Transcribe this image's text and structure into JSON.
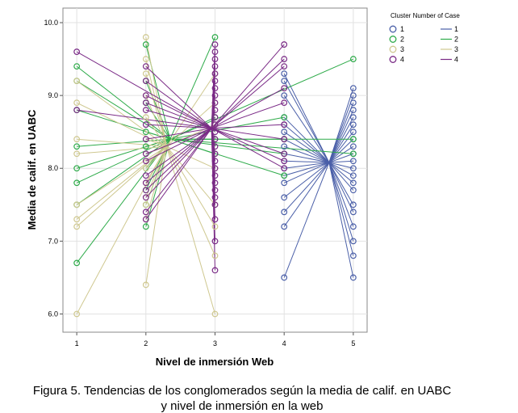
{
  "chart_data": {
    "type": "line",
    "xlabel": "Nivel de inmersión Web",
    "ylabel": "Media de calif. en UABC",
    "xlim": [
      0.8,
      5.2
    ],
    "ylim": [
      5.75,
      10.2
    ],
    "x_ticks": [
      "1",
      "2",
      "3",
      "4",
      "5"
    ],
    "y_ticks": [
      "6.0",
      "7.0",
      "8.0",
      "9.0",
      "10.0"
    ],
    "grid": true,
    "legend_placement": "top-right, outside plot",
    "legend_title": "Cluster Number of Case",
    "series": [
      {
        "name": "1",
        "color": "#4a5fa8",
        "centroid": [
          4.65,
          8.08
        ],
        "points": [
          [
            4,
            9.3
          ],
          [
            4,
            9.2
          ],
          [
            4,
            9.0
          ],
          [
            4,
            8.7
          ],
          [
            4,
            8.6
          ],
          [
            4,
            8.5
          ],
          [
            4,
            8.4
          ],
          [
            4,
            8.3
          ],
          [
            4,
            8.2
          ],
          [
            4,
            8.1
          ],
          [
            4,
            8.0
          ],
          [
            4,
            7.9
          ],
          [
            4,
            7.8
          ],
          [
            4,
            7.6
          ],
          [
            4,
            7.4
          ],
          [
            4,
            7.2
          ],
          [
            4,
            6.5
          ],
          [
            5,
            9.1
          ],
          [
            5,
            9.0
          ],
          [
            5,
            8.9
          ],
          [
            5,
            8.8
          ],
          [
            5,
            8.7
          ],
          [
            5,
            8.6
          ],
          [
            5,
            8.5
          ],
          [
            5,
            8.4
          ],
          [
            5,
            8.3
          ],
          [
            5,
            8.2
          ],
          [
            5,
            8.1
          ],
          [
            5,
            8.0
          ],
          [
            5,
            7.9
          ],
          [
            5,
            7.8
          ],
          [
            5,
            7.7
          ],
          [
            5,
            7.5
          ],
          [
            5,
            7.4
          ],
          [
            5,
            7.2
          ],
          [
            5,
            7.0
          ],
          [
            5,
            6.8
          ],
          [
            5,
            6.5
          ]
        ]
      },
      {
        "name": "2",
        "color": "#2eab4a",
        "centroid": [
          2.35,
          8.4
        ],
        "points": [
          [
            1,
            9.4
          ],
          [
            1,
            9.2
          ],
          [
            1,
            8.8
          ],
          [
            1,
            8.3
          ],
          [
            1,
            8.0
          ],
          [
            1,
            7.8
          ],
          [
            1,
            7.5
          ],
          [
            1,
            6.7
          ],
          [
            2,
            9.7
          ],
          [
            2,
            9.2
          ],
          [
            2,
            8.9
          ],
          [
            2,
            8.5
          ],
          [
            2,
            8.3
          ],
          [
            2,
            8.0
          ],
          [
            2,
            7.7
          ],
          [
            2,
            7.5
          ],
          [
            2,
            7.2
          ],
          [
            3,
            9.8
          ],
          [
            3,
            8.7
          ],
          [
            3,
            8.4
          ],
          [
            3,
            8.2
          ],
          [
            4,
            8.7
          ],
          [
            4,
            8.4
          ],
          [
            4,
            8.2
          ],
          [
            4,
            7.9
          ],
          [
            5,
            9.5
          ],
          [
            5,
            8.4
          ],
          [
            5,
            8.2
          ]
        ]
      },
      {
        "name": "3",
        "color": "#cfc890",
        "centroid": [
          2.3,
          8.3
        ],
        "points": [
          [
            1,
            9.2
          ],
          [
            1,
            8.9
          ],
          [
            1,
            8.4
          ],
          [
            1,
            8.2
          ],
          [
            1,
            7.5
          ],
          [
            1,
            7.3
          ],
          [
            1,
            7.2
          ],
          [
            1,
            6.0
          ],
          [
            2,
            9.8
          ],
          [
            2,
            9.5
          ],
          [
            2,
            9.3
          ],
          [
            2,
            9.0
          ],
          [
            2,
            8.7
          ],
          [
            2,
            8.4
          ],
          [
            2,
            8.2
          ],
          [
            2,
            8.0
          ],
          [
            2,
            7.8
          ],
          [
            2,
            7.6
          ],
          [
            2,
            7.5
          ],
          [
            2,
            7.3
          ],
          [
            2,
            6.4
          ],
          [
            3,
            9.3
          ],
          [
            3,
            8.9
          ],
          [
            3,
            8.6
          ],
          [
            3,
            8.0
          ],
          [
            3,
            7.5
          ],
          [
            3,
            7.2
          ],
          [
            3,
            6.8
          ],
          [
            3,
            6.0
          ]
        ]
      },
      {
        "name": "4",
        "color": "#7a2a86",
        "centroid": [
          2.95,
          8.55
        ],
        "points": [
          [
            1,
            9.6
          ],
          [
            1,
            8.8
          ],
          [
            2,
            9.4
          ],
          [
            2,
            9.2
          ],
          [
            2,
            9.0
          ],
          [
            2,
            8.9
          ],
          [
            2,
            8.8
          ],
          [
            2,
            8.6
          ],
          [
            2,
            8.4
          ],
          [
            2,
            8.2
          ],
          [
            2,
            8.1
          ],
          [
            2,
            7.9
          ],
          [
            2,
            7.8
          ],
          [
            2,
            7.7
          ],
          [
            2,
            7.6
          ],
          [
            2,
            7.4
          ],
          [
            2,
            7.3
          ],
          [
            3,
            9.7
          ],
          [
            3,
            9.6
          ],
          [
            3,
            9.5
          ],
          [
            3,
            9.4
          ],
          [
            3,
            9.3
          ],
          [
            3,
            9.2
          ],
          [
            3,
            9.1
          ],
          [
            3,
            9.0
          ],
          [
            3,
            8.9
          ],
          [
            3,
            8.8
          ],
          [
            3,
            8.7
          ],
          [
            3,
            8.6
          ],
          [
            3,
            8.5
          ],
          [
            3,
            8.4
          ],
          [
            3,
            8.3
          ],
          [
            3,
            8.2
          ],
          [
            3,
            8.1
          ],
          [
            3,
            8.0
          ],
          [
            3,
            7.9
          ],
          [
            3,
            7.8
          ],
          [
            3,
            7.7
          ],
          [
            3,
            7.6
          ],
          [
            3,
            7.5
          ],
          [
            3,
            7.3
          ],
          [
            3,
            7.0
          ],
          [
            3,
            6.6
          ],
          [
            4,
            9.7
          ],
          [
            4,
            9.5
          ],
          [
            4,
            9.4
          ],
          [
            4,
            9.1
          ],
          [
            4,
            8.9
          ],
          [
            4,
            8.6
          ],
          [
            4,
            8.4
          ],
          [
            4,
            8.2
          ],
          [
            4,
            8.1
          ],
          [
            4,
            8.0
          ]
        ]
      }
    ]
  },
  "caption": {
    "line1": "Figura 5. Tendencias de los conglomerados según la media de calif. en UABC",
    "line2": "y nivel de inmersión en la web"
  }
}
